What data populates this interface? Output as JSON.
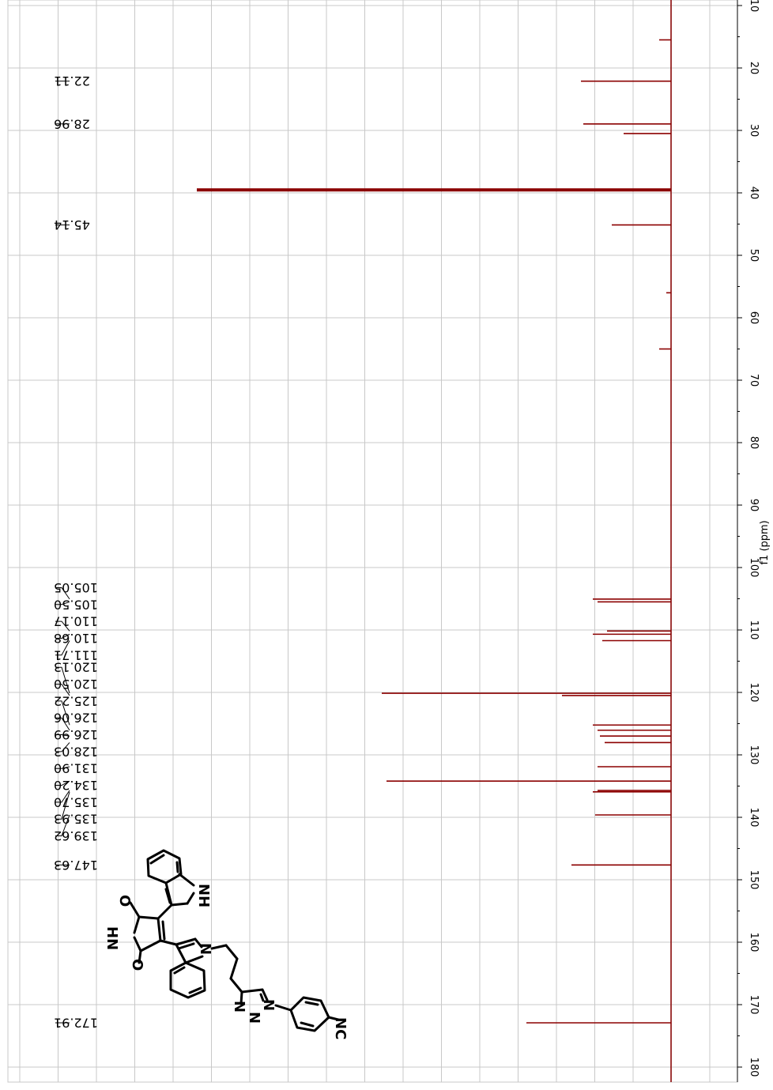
{
  "chart_data": {
    "type": "line",
    "orientation": "rotated-90-clockwise",
    "spectrum": "13C NMR",
    "axis_title": "f1 (ppm)",
    "axis_range_ppm": [
      9,
      181
    ],
    "ticks": [
      10,
      20,
      30,
      40,
      50,
      60,
      70,
      80,
      90,
      100,
      110,
      120,
      130,
      140,
      150,
      160,
      170,
      180
    ],
    "tick_labels": [
      "10",
      "20",
      "30",
      "40",
      "50",
      "60",
      "70",
      "80",
      "90",
      "100",
      "110",
      "120",
      "130",
      "140",
      "150",
      "160",
      "170",
      "180"
    ],
    "grid": true,
    "colors": {
      "spectrum": "#8b0000",
      "grid": "#c8c8c8",
      "text": "#000000"
    },
    "peak_labels": [
      "22.11",
      "28.96",
      "45.14",
      "105.05",
      "105.50",
      "110.17",
      "110.68",
      "111.71",
      "120.13",
      "120.50",
      "125.22",
      "126.06",
      "126.99",
      "128.03",
      "131.90",
      "134.20",
      "135.70",
      "135.93",
      "139.62",
      "147.63",
      "172.91"
    ],
    "peaks": [
      {
        "ppm": 15.5,
        "intensity": 0.05
      },
      {
        "ppm": 22.11,
        "intensity": 0.38
      },
      {
        "ppm": 28.96,
        "intensity": 0.37
      },
      {
        "ppm": 30.5,
        "intensity": 0.2
      },
      {
        "ppm": 39.52,
        "intensity": 2.0
      },
      {
        "ppm": 45.14,
        "intensity": 0.25
      },
      {
        "ppm": 56.0,
        "intensity": 0.02
      },
      {
        "ppm": 65.0,
        "intensity": 0.05
      },
      {
        "ppm": 105.05,
        "intensity": 0.33
      },
      {
        "ppm": 105.5,
        "intensity": 0.31
      },
      {
        "ppm": 110.17,
        "intensity": 0.27
      },
      {
        "ppm": 110.68,
        "intensity": 0.33
      },
      {
        "ppm": 111.71,
        "intensity": 0.29
      },
      {
        "ppm": 120.13,
        "intensity": 1.22
      },
      {
        "ppm": 120.5,
        "intensity": 0.46
      },
      {
        "ppm": 125.22,
        "intensity": 0.33
      },
      {
        "ppm": 126.06,
        "intensity": 0.31
      },
      {
        "ppm": 126.99,
        "intensity": 0.3
      },
      {
        "ppm": 128.03,
        "intensity": 0.28
      },
      {
        "ppm": 131.9,
        "intensity": 0.31
      },
      {
        "ppm": 134.2,
        "intensity": 1.2
      },
      {
        "ppm": 135.7,
        "intensity": 0.31
      },
      {
        "ppm": 135.93,
        "intensity": 0.33
      },
      {
        "ppm": 139.62,
        "intensity": 0.32
      },
      {
        "ppm": 147.63,
        "intensity": 0.42
      },
      {
        "ppm": 172.91,
        "intensity": 0.61
      }
    ],
    "structure_labels": {
      "nh_top": "NH",
      "o_top": "O",
      "hn": "HN",
      "o_bottom": "O",
      "n_indole": "N",
      "triazole_n1": "N",
      "triazole_n2": "N",
      "triazole_n3": "N",
      "cn": "NC"
    }
  }
}
